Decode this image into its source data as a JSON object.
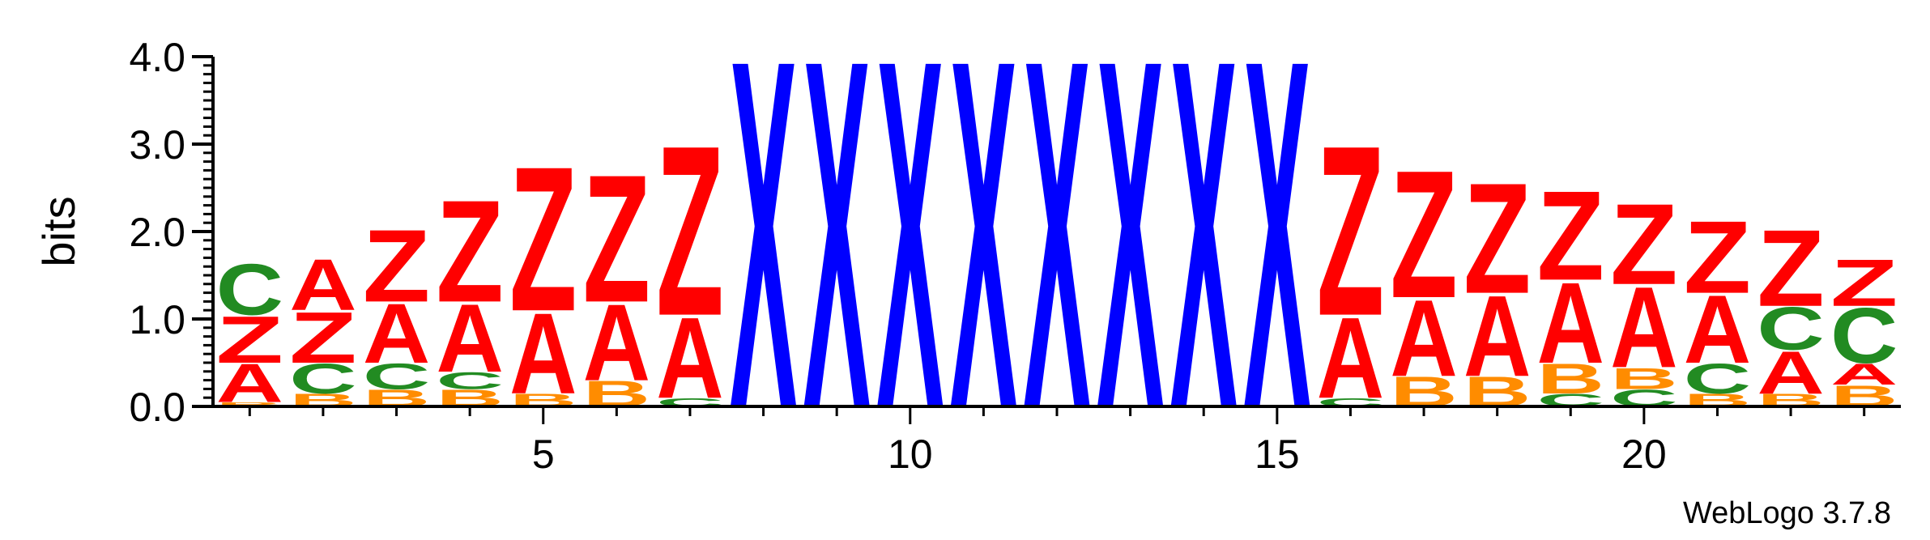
{
  "chart_data": {
    "type": "sequence-logo",
    "ylabel": "bits",
    "ylim": [
      0,
      4.0
    ],
    "y_ticks": [
      "0.0",
      "1.0",
      "2.0",
      "3.0",
      "4.0"
    ],
    "xlim": [
      0.5,
      23.5
    ],
    "x_ticks": [
      "5",
      "10",
      "15",
      "20"
    ],
    "x_tick_values": [
      5,
      10,
      15,
      20
    ],
    "credit": "WebLogo 3.7.8",
    "colors": {
      "A": "#ff0000",
      "Z": "#ff0000",
      "C": "#228b22",
      "B": "#ff8c00",
      "X": "#0000ff"
    },
    "positions": [
      {
        "pos": 1,
        "stack": [
          {
            "letter": "B",
            "height": 0.05
          },
          {
            "letter": "A",
            "height": 0.45
          },
          {
            "letter": "Z",
            "height": 0.55
          },
          {
            "letter": "C",
            "height": 0.6
          }
        ]
      },
      {
        "pos": 2,
        "stack": [
          {
            "letter": "B",
            "height": 0.15
          },
          {
            "letter": "C",
            "height": 0.35
          },
          {
            "letter": "Z",
            "height": 0.6
          },
          {
            "letter": "A",
            "height": 0.6
          }
        ]
      },
      {
        "pos": 3,
        "stack": [
          {
            "letter": "B",
            "height": 0.2
          },
          {
            "letter": "C",
            "height": 0.3
          },
          {
            "letter": "A",
            "height": 0.7
          },
          {
            "letter": "Z",
            "height": 0.85
          }
        ]
      },
      {
        "pos": 4,
        "stack": [
          {
            "letter": "B",
            "height": 0.2
          },
          {
            "letter": "C",
            "height": 0.2
          },
          {
            "letter": "A",
            "height": 0.8
          },
          {
            "letter": "Z",
            "height": 1.2
          }
        ]
      },
      {
        "pos": 5,
        "stack": [
          {
            "letter": "B",
            "height": 0.15
          },
          {
            "letter": "A",
            "height": 0.95
          },
          {
            "letter": "Z",
            "height": 1.7
          }
        ]
      },
      {
        "pos": 6,
        "stack": [
          {
            "letter": "B",
            "height": 0.3
          },
          {
            "letter": "A",
            "height": 0.9
          },
          {
            "letter": "Z",
            "height": 1.5
          }
        ]
      },
      {
        "pos": 7,
        "stack": [
          {
            "letter": "C",
            "height": 0.1
          },
          {
            "letter": "A",
            "height": 0.95
          },
          {
            "letter": "Z",
            "height": 2.0
          }
        ]
      },
      {
        "pos": 8,
        "stack": [
          {
            "letter": "X",
            "height": 4.1
          }
        ]
      },
      {
        "pos": 9,
        "stack": [
          {
            "letter": "X",
            "height": 4.1
          }
        ]
      },
      {
        "pos": 10,
        "stack": [
          {
            "letter": "X",
            "height": 4.1
          }
        ]
      },
      {
        "pos": 11,
        "stack": [
          {
            "letter": "X",
            "height": 4.1
          }
        ]
      },
      {
        "pos": 12,
        "stack": [
          {
            "letter": "X",
            "height": 4.1
          }
        ]
      },
      {
        "pos": 13,
        "stack": [
          {
            "letter": "X",
            "height": 4.1
          }
        ]
      },
      {
        "pos": 14,
        "stack": [
          {
            "letter": "X",
            "height": 4.1
          }
        ]
      },
      {
        "pos": 15,
        "stack": [
          {
            "letter": "X",
            "height": 4.1
          }
        ]
      },
      {
        "pos": 16,
        "stack": [
          {
            "letter": "C",
            "height": 0.1
          },
          {
            "letter": "A",
            "height": 0.95
          },
          {
            "letter": "Z",
            "height": 2.0
          }
        ]
      },
      {
        "pos": 17,
        "stack": [
          {
            "letter": "B",
            "height": 0.35
          },
          {
            "letter": "A",
            "height": 0.9
          },
          {
            "letter": "Z",
            "height": 1.5
          }
        ]
      },
      {
        "pos": 18,
        "stack": [
          {
            "letter": "B",
            "height": 0.35
          },
          {
            "letter": "A",
            "height": 0.95
          },
          {
            "letter": "Z",
            "height": 1.3
          }
        ]
      },
      {
        "pos": 19,
        "stack": [
          {
            "letter": "C",
            "height": 0.15
          },
          {
            "letter": "B",
            "height": 0.35
          },
          {
            "letter": "A",
            "height": 0.95
          },
          {
            "letter": "Z",
            "height": 1.05
          }
        ]
      },
      {
        "pos": 20,
        "stack": [
          {
            "letter": "C",
            "height": 0.2
          },
          {
            "letter": "B",
            "height": 0.25
          },
          {
            "letter": "A",
            "height": 0.95
          },
          {
            "letter": "Z",
            "height": 0.95
          }
        ]
      },
      {
        "pos": 21,
        "stack": [
          {
            "letter": "B",
            "height": 0.15
          },
          {
            "letter": "C",
            "height": 0.35
          },
          {
            "letter": "A",
            "height": 0.8
          },
          {
            "letter": "Z",
            "height": 0.85
          }
        ]
      },
      {
        "pos": 22,
        "stack": [
          {
            "letter": "B",
            "height": 0.15
          },
          {
            "letter": "A",
            "height": 0.5
          },
          {
            "letter": "C",
            "height": 0.5
          },
          {
            "letter": "Z",
            "height": 0.9
          }
        ]
      },
      {
        "pos": 23,
        "stack": [
          {
            "letter": "B",
            "height": 0.25
          },
          {
            "letter": "A",
            "height": 0.25
          },
          {
            "letter": "C",
            "height": 0.65
          },
          {
            "letter": "Z",
            "height": 0.55
          }
        ]
      }
    ]
  }
}
